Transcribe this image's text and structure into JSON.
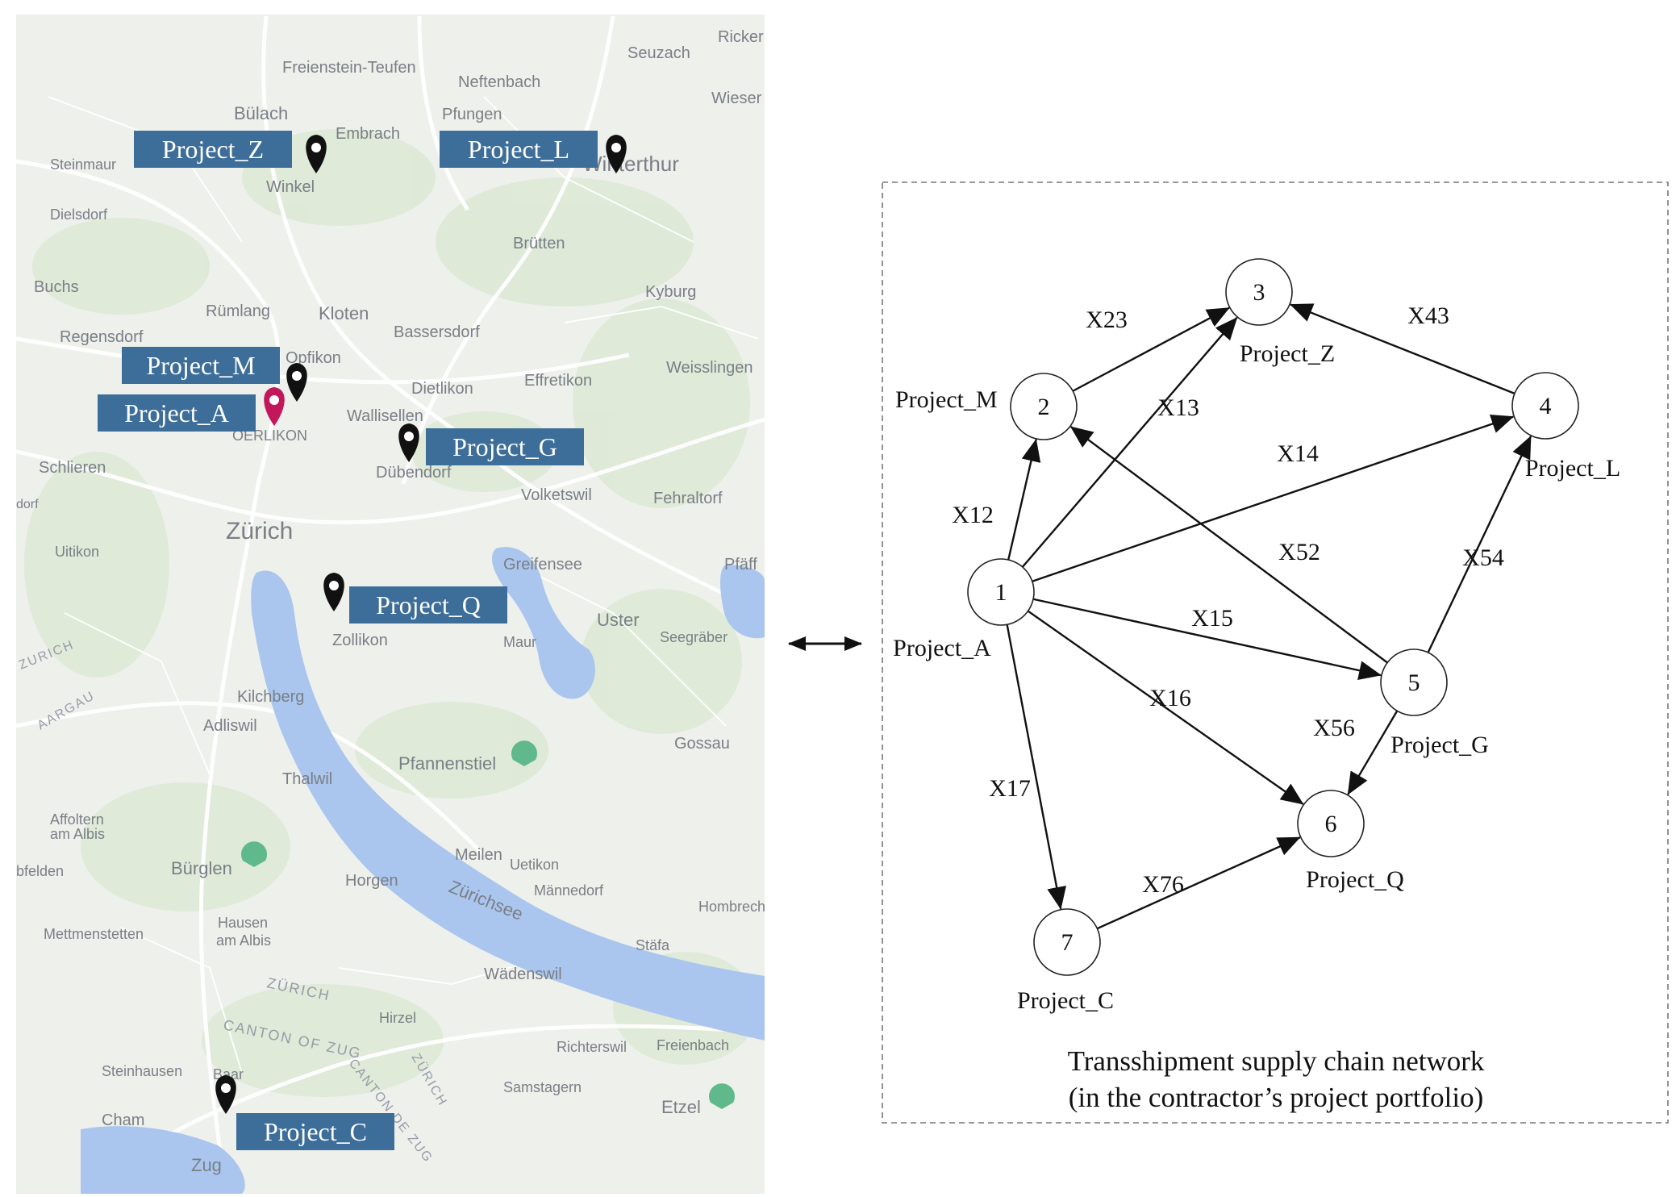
{
  "map": {
    "towns": [
      {
        "name": "Freienstein-Teufen"
      },
      {
        "name": "Neftenbach"
      },
      {
        "name": "Seuzach"
      },
      {
        "name": "Ricker"
      },
      {
        "name": "Bülach"
      },
      {
        "name": "Pfungen"
      },
      {
        "name": "Wieser"
      },
      {
        "name": "Embrach"
      },
      {
        "name": "Steinmaur"
      },
      {
        "name": "Winterthur"
      },
      {
        "name": "Winkel"
      },
      {
        "name": "Dielsdorf"
      },
      {
        "name": "Brütten"
      },
      {
        "name": "Buchs"
      },
      {
        "name": "Kyburg"
      },
      {
        "name": "Rümlang"
      },
      {
        "name": "Kloten"
      },
      {
        "name": "Bassersdorf"
      },
      {
        "name": "Regensdorf"
      },
      {
        "name": "Opfikon"
      },
      {
        "name": "Weisslingen"
      },
      {
        "name": "Dietlikon"
      },
      {
        "name": "Effretikon"
      },
      {
        "name": "Wallisellen"
      },
      {
        "name": "OERLIKON"
      },
      {
        "name": "Schlieren"
      },
      {
        "name": "Dübendorf"
      },
      {
        "name": "Volketswil"
      },
      {
        "name": "Fehraltorf"
      },
      {
        "name": "Zürich"
      },
      {
        "name": "Uitikon"
      },
      {
        "name": "Greifensee"
      },
      {
        "name": "Pfäff"
      },
      {
        "name": "Uster"
      },
      {
        "name": "Zollikon"
      },
      {
        "name": "Maur"
      },
      {
        "name": "Seegräber"
      },
      {
        "name": "Kilchberg"
      },
      {
        "name": "Adliswil"
      },
      {
        "name": "Gossau"
      },
      {
        "name": "Pfannenstiel"
      },
      {
        "name": "Thalwil"
      },
      {
        "name": "Affoltern"
      },
      {
        "name": "am Albis"
      },
      {
        "name": "Bürglen"
      },
      {
        "name": "Meilen"
      },
      {
        "name": "Uetikon"
      },
      {
        "name": "bfelden"
      },
      {
        "name": "Horgen"
      },
      {
        "name": "Männedorf"
      },
      {
        "name": "Hombrechtik"
      },
      {
        "name": "Hausen"
      },
      {
        "name": "am Albis"
      },
      {
        "name": "Mettmenstetten"
      },
      {
        "name": "Stäfa"
      },
      {
        "name": "Wädenswil"
      },
      {
        "name": "Hirzel"
      },
      {
        "name": "Richterswil"
      },
      {
        "name": "Freienbach"
      },
      {
        "name": "Steinhausen"
      },
      {
        "name": "Baar"
      },
      {
        "name": "Samstagern"
      },
      {
        "name": "Etzel"
      },
      {
        "name": "Cham"
      },
      {
        "name": "Zug"
      },
      {
        "name": "dorf"
      }
    ],
    "regions": [
      "ZURICH",
      "AARGAU",
      "ZÜRICH",
      "CANTON OF ZUG",
      "CANTON DE ZUG",
      "ZÜRICH"
    ],
    "lake": "Zürichsee",
    "projects": [
      {
        "label": "Project_Z"
      },
      {
        "label": "Project_L"
      },
      {
        "label": "Project_M"
      },
      {
        "label": "Project_A"
      },
      {
        "label": "Project_G"
      },
      {
        "label": "Project_Q"
      },
      {
        "label": "Project_C"
      }
    ],
    "colors": {
      "land": "#eef0ec",
      "water": "#aac6ee",
      "road": "#ffffff",
      "box": "#3d6e99",
      "pin": "#111111",
      "pin_highlight": "#c2185b"
    }
  },
  "link_symbol": "⟷",
  "network": {
    "nodes": [
      {
        "id": "1",
        "name": "Project_A"
      },
      {
        "id": "2",
        "name": "Project_M"
      },
      {
        "id": "3",
        "name": "Project_Z"
      },
      {
        "id": "4",
        "name": "Project_L"
      },
      {
        "id": "5",
        "name": "Project_G"
      },
      {
        "id": "6",
        "name": "Project_Q"
      },
      {
        "id": "7",
        "name": "Project_C"
      }
    ],
    "edges": [
      {
        "from": "1",
        "to": "2",
        "label": "X12"
      },
      {
        "from": "1",
        "to": "3",
        "label": "X13"
      },
      {
        "from": "1",
        "to": "4",
        "label": "X14"
      },
      {
        "from": "1",
        "to": "5",
        "label": "X15"
      },
      {
        "from": "1",
        "to": "6",
        "label": "X16"
      },
      {
        "from": "1",
        "to": "7",
        "label": "X17"
      },
      {
        "from": "2",
        "to": "3",
        "label": "X23"
      },
      {
        "from": "4",
        "to": "3",
        "label": "X43"
      },
      {
        "from": "5",
        "to": "2",
        "label": "X52"
      },
      {
        "from": "5",
        "to": "4",
        "label": "X54"
      },
      {
        "from": "5",
        "to": "6",
        "label": "X56"
      },
      {
        "from": "7",
        "to": "6",
        "label": "X76"
      }
    ],
    "caption_line1": "Transshipment supply chain network",
    "caption_line2": "(in the contractor’s project portfolio)"
  }
}
